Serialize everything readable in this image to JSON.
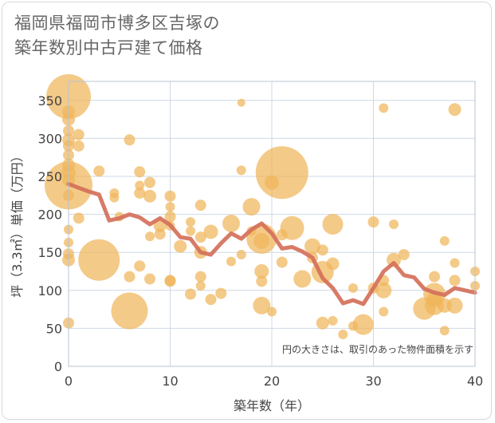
{
  "title": "福岡県福岡市博多区吉塚の\n築年数別中古戸建て価格",
  "chart_data": {
    "type": "scatter",
    "xlabel": "築年数（年）",
    "ylabel": "坪（3.3㎡）単価（万円）",
    "xlim": [
      0,
      40
    ],
    "ylim": [
      0,
      375
    ],
    "x_ticks": [
      0,
      10,
      20,
      30,
      40
    ],
    "y_ticks": [
      0,
      50,
      100,
      150,
      200,
      250,
      300,
      350
    ],
    "annotation": "円の大きさは、取引のあった物件面積を示す",
    "colors": {
      "bubble": "#f0b55a",
      "line": "#d4705a",
      "grid": "#cfd8e6"
    },
    "bubbles": [
      {
        "x": 0,
        "y": 355,
        "s": 28
      },
      {
        "x": 0,
        "y": 335,
        "s": 8
      },
      {
        "x": 0,
        "y": 325,
        "s": 8
      },
      {
        "x": 0,
        "y": 310,
        "s": 7
      },
      {
        "x": 0,
        "y": 298,
        "s": 8
      },
      {
        "x": 0,
        "y": 290,
        "s": 7
      },
      {
        "x": 0,
        "y": 278,
        "s": 7
      },
      {
        "x": 0,
        "y": 265,
        "s": 8
      },
      {
        "x": 0,
        "y": 255,
        "s": 9
      },
      {
        "x": 0,
        "y": 245,
        "s": 8
      },
      {
        "x": 0,
        "y": 238,
        "s": 30
      },
      {
        "x": 0,
        "y": 225,
        "s": 7
      },
      {
        "x": 0,
        "y": 180,
        "s": 6
      },
      {
        "x": 0,
        "y": 163,
        "s": 6
      },
      {
        "x": 0,
        "y": 148,
        "s": 7
      },
      {
        "x": 0,
        "y": 140,
        "s": 8
      },
      {
        "x": 0,
        "y": 57,
        "s": 7
      },
      {
        "x": 1,
        "y": 305,
        "s": 7
      },
      {
        "x": 1,
        "y": 290,
        "s": 7
      },
      {
        "x": 1,
        "y": 195,
        "s": 7
      },
      {
        "x": 3,
        "y": 257,
        "s": 7
      },
      {
        "x": 3,
        "y": 140,
        "s": 26
      },
      {
        "x": 4.5,
        "y": 228,
        "s": 6
      },
      {
        "x": 4.5,
        "y": 222,
        "s": 6
      },
      {
        "x": 5,
        "y": 197,
        "s": 6
      },
      {
        "x": 6,
        "y": 298,
        "s": 7
      },
      {
        "x": 6,
        "y": 118,
        "s": 7
      },
      {
        "x": 6,
        "y": 73,
        "s": 23
      },
      {
        "x": 7,
        "y": 256,
        "s": 7
      },
      {
        "x": 7,
        "y": 238,
        "s": 6
      },
      {
        "x": 7,
        "y": 228,
        "s": 7
      },
      {
        "x": 7,
        "y": 132,
        "s": 7
      },
      {
        "x": 8,
        "y": 242,
        "s": 7
      },
      {
        "x": 8,
        "y": 224,
        "s": 8
      },
      {
        "x": 8,
        "y": 171,
        "s": 6
      },
      {
        "x": 8,
        "y": 115,
        "s": 7
      },
      {
        "x": 9,
        "y": 185,
        "s": 8
      },
      {
        "x": 9,
        "y": 174,
        "s": 7
      },
      {
        "x": 10,
        "y": 224,
        "s": 7
      },
      {
        "x": 10,
        "y": 210,
        "s": 6
      },
      {
        "x": 10,
        "y": 197,
        "s": 7
      },
      {
        "x": 10,
        "y": 185,
        "s": 6
      },
      {
        "x": 10,
        "y": 113,
        "s": 7
      },
      {
        "x": 10,
        "y": 112,
        "s": 7
      },
      {
        "x": 11,
        "y": 158,
        "s": 8
      },
      {
        "x": 12,
        "y": 190,
        "s": 6
      },
      {
        "x": 12,
        "y": 178,
        "s": 6
      },
      {
        "x": 12,
        "y": 95,
        "s": 7
      },
      {
        "x": 13,
        "y": 212,
        "s": 7
      },
      {
        "x": 13,
        "y": 170,
        "s": 7
      },
      {
        "x": 13,
        "y": 150,
        "s": 8
      },
      {
        "x": 13,
        "y": 118,
        "s": 7
      },
      {
        "x": 13,
        "y": 106,
        "s": 6
      },
      {
        "x": 14,
        "y": 177,
        "s": 9
      },
      {
        "x": 14,
        "y": 88,
        "s": 7
      },
      {
        "x": 15,
        "y": 96,
        "s": 7
      },
      {
        "x": 16,
        "y": 188,
        "s": 11
      },
      {
        "x": 16,
        "y": 138,
        "s": 6
      },
      {
        "x": 17,
        "y": 347,
        "s": 5
      },
      {
        "x": 17,
        "y": 258,
        "s": 6
      },
      {
        "x": 17,
        "y": 147,
        "s": 6
      },
      {
        "x": 18,
        "y": 210,
        "s": 11
      },
      {
        "x": 18,
        "y": 178,
        "s": 6
      },
      {
        "x": 19,
        "y": 168,
        "s": 19
      },
      {
        "x": 19,
        "y": 165,
        "s": 10
      },
      {
        "x": 19,
        "y": 125,
        "s": 9
      },
      {
        "x": 19,
        "y": 112,
        "s": 7
      },
      {
        "x": 19,
        "y": 80,
        "s": 11
      },
      {
        "x": 20,
        "y": 242,
        "s": 9
      },
      {
        "x": 20,
        "y": 72,
        "s": 6
      },
      {
        "x": 21,
        "y": 255,
        "s": 33
      },
      {
        "x": 21,
        "y": 173,
        "s": 7
      },
      {
        "x": 21,
        "y": 137,
        "s": 7
      },
      {
        "x": 22,
        "y": 182,
        "s": 15
      },
      {
        "x": 23,
        "y": 115,
        "s": 11
      },
      {
        "x": 24,
        "y": 158,
        "s": 10
      },
      {
        "x": 24,
        "y": 143,
        "s": 7
      },
      {
        "x": 25,
        "y": 124,
        "s": 14
      },
      {
        "x": 25,
        "y": 153,
        "s": 7
      },
      {
        "x": 25,
        "y": 57,
        "s": 8
      },
      {
        "x": 26,
        "y": 187,
        "s": 13
      },
      {
        "x": 26,
        "y": 135,
        "s": 8
      },
      {
        "x": 26,
        "y": 60,
        "s": 6
      },
      {
        "x": 27,
        "y": 42,
        "s": 6
      },
      {
        "x": 28,
        "y": 103,
        "s": 6
      },
      {
        "x": 28,
        "y": 53,
        "s": 6
      },
      {
        "x": 29,
        "y": 55,
        "s": 13
      },
      {
        "x": 30,
        "y": 190,
        "s": 7
      },
      {
        "x": 30,
        "y": 103,
        "s": 7
      },
      {
        "x": 31,
        "y": 340,
        "s": 6
      },
      {
        "x": 31,
        "y": 113,
        "s": 7
      },
      {
        "x": 31,
        "y": 100,
        "s": 10
      },
      {
        "x": 31,
        "y": 72,
        "s": 6
      },
      {
        "x": 32,
        "y": 187,
        "s": 6
      },
      {
        "x": 32,
        "y": 140,
        "s": 9
      },
      {
        "x": 33,
        "y": 147,
        "s": 7
      },
      {
        "x": 35,
        "y": 76,
        "s": 14
      },
      {
        "x": 36,
        "y": 118,
        "s": 7
      },
      {
        "x": 36,
        "y": 95,
        "s": 14
      },
      {
        "x": 36,
        "y": 88,
        "s": 10
      },
      {
        "x": 36,
        "y": 80,
        "s": 12
      },
      {
        "x": 37,
        "y": 165,
        "s": 6
      },
      {
        "x": 37,
        "y": 80,
        "s": 9
      },
      {
        "x": 37,
        "y": 47,
        "s": 6
      },
      {
        "x": 38,
        "y": 338,
        "s": 8
      },
      {
        "x": 38,
        "y": 136,
        "s": 6
      },
      {
        "x": 38,
        "y": 113,
        "s": 7
      },
      {
        "x": 38,
        "y": 80,
        "s": 10
      },
      {
        "x": 40,
        "y": 125,
        "s": 6
      },
      {
        "x": 40,
        "y": 106,
        "s": 6
      }
    ],
    "trend": [
      {
        "x": 0,
        "y": 240
      },
      {
        "x": 1,
        "y": 235
      },
      {
        "x": 2,
        "y": 230
      },
      {
        "x": 3,
        "y": 226
      },
      {
        "x": 4,
        "y": 192
      },
      {
        "x": 5,
        "y": 195
      },
      {
        "x": 6,
        "y": 200
      },
      {
        "x": 7,
        "y": 196
      },
      {
        "x": 8,
        "y": 187
      },
      {
        "x": 9,
        "y": 195
      },
      {
        "x": 10,
        "y": 186
      },
      {
        "x": 11,
        "y": 170
      },
      {
        "x": 12,
        "y": 168
      },
      {
        "x": 13,
        "y": 150
      },
      {
        "x": 14,
        "y": 147
      },
      {
        "x": 15,
        "y": 162
      },
      {
        "x": 16,
        "y": 175
      },
      {
        "x": 17,
        "y": 168
      },
      {
        "x": 18,
        "y": 180
      },
      {
        "x": 19,
        "y": 188
      },
      {
        "x": 20,
        "y": 175
      },
      {
        "x": 21,
        "y": 155
      },
      {
        "x": 22,
        "y": 157
      },
      {
        "x": 23,
        "y": 151
      },
      {
        "x": 24,
        "y": 143
      },
      {
        "x": 25,
        "y": 116
      },
      {
        "x": 26,
        "y": 103
      },
      {
        "x": 27,
        "y": 83
      },
      {
        "x": 28,
        "y": 87
      },
      {
        "x": 29,
        "y": 82
      },
      {
        "x": 30,
        "y": 103
      },
      {
        "x": 31,
        "y": 125
      },
      {
        "x": 32,
        "y": 136
      },
      {
        "x": 33,
        "y": 120
      },
      {
        "x": 34,
        "y": 117
      },
      {
        "x": 35,
        "y": 102
      },
      {
        "x": 36,
        "y": 97
      },
      {
        "x": 37,
        "y": 94
      },
      {
        "x": 38,
        "y": 103
      },
      {
        "x": 39,
        "y": 100
      },
      {
        "x": 40,
        "y": 97
      }
    ]
  }
}
